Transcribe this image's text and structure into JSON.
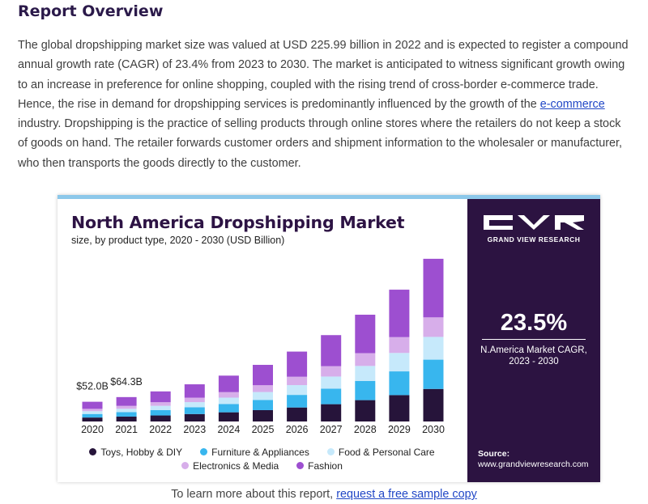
{
  "heading": "Report Overview",
  "paragraph": {
    "before_link": "The global dropshipping market size was valued at USD 225.99 billion in 2022 and is expected to register a compound annual growth rate (CAGR) of 23.4% from 2023 to 2030. The market is anticipated to witness significant growth owing to an increase in preference for online shopping, coupled with the rising trend of cross-border e-commerce trade. Hence, the rise in demand for dropshipping services is predominantly influenced by the growth of the ",
    "link": "e-commerce",
    "after_link": " industry. Dropshipping is the practice of selling products through online stores where the retailers do not keep a stock of goods on hand. The retailer forwards customer orders and shipment information to the wholesaler or manufacturer, who then transports the goods directly to the customer."
  },
  "sidebar": {
    "brand": "GRAND VIEW RESEARCH",
    "cagr_value": "23.5%",
    "cagr_label_line1": "N.America Market CAGR,",
    "cagr_label_line2": "2023 - 2030",
    "source_label": "Source:",
    "source_url": "www.grandviewresearch.com"
  },
  "footer": {
    "text": "To learn more about this report, ",
    "link": "request a free sample copy"
  },
  "colors": {
    "toys": "#26143a",
    "furniture": "#38b6ee",
    "food": "#c6e9fb",
    "electronics": "#d7aeea",
    "fashion": "#9d4fd0",
    "sidebar_bg": "#2c1341"
  },
  "chart_data": {
    "type": "bar",
    "stacked": true,
    "title": "North America Dropshipping Market",
    "subtitle": "size, by product type, 2020 - 2030 (USD Billion)",
    "categories": [
      "2020",
      "2021",
      "2022",
      "2023",
      "2024",
      "2025",
      "2026",
      "2027",
      "2028",
      "2029",
      "2030"
    ],
    "series": [
      {
        "name": "Toys, Hobby & DIY",
        "values": [
          10.4,
          12.9,
          15.9,
          19.6,
          24.2,
          29.9,
          36.9,
          45.6,
          56.3,
          69.5,
          85.8
        ]
      },
      {
        "name": "Furniture & Appliances",
        "values": [
          9.4,
          11.6,
          14.3,
          17.7,
          21.8,
          26.9,
          33.2,
          41.0,
          50.7,
          62.6,
          77.2
        ]
      },
      {
        "name": "Food & Personal Care",
        "values": [
          7.3,
          9.0,
          11.1,
          13.7,
          16.9,
          20.9,
          25.8,
          31.9,
          39.4,
          48.6,
          60.0
        ]
      },
      {
        "name": "Electronics & Media",
        "values": [
          6.2,
          7.7,
          9.5,
          11.8,
          14.5,
          17.9,
          22.1,
          27.3,
          33.8,
          41.7,
          51.5
        ]
      },
      {
        "name": "Fashion",
        "values": [
          18.7,
          23.1,
          28.5,
          35.2,
          43.5,
          53.7,
          66.3,
          81.9,
          101.3,
          125.1,
          154.4
        ]
      }
    ],
    "annotations": [
      {
        "category": "2020",
        "text": "$52.0B"
      },
      {
        "category": "2021",
        "text": "$64.3B"
      }
    ],
    "ylim": [
      0,
      450
    ],
    "grid": false,
    "legend_position": "bottom"
  }
}
